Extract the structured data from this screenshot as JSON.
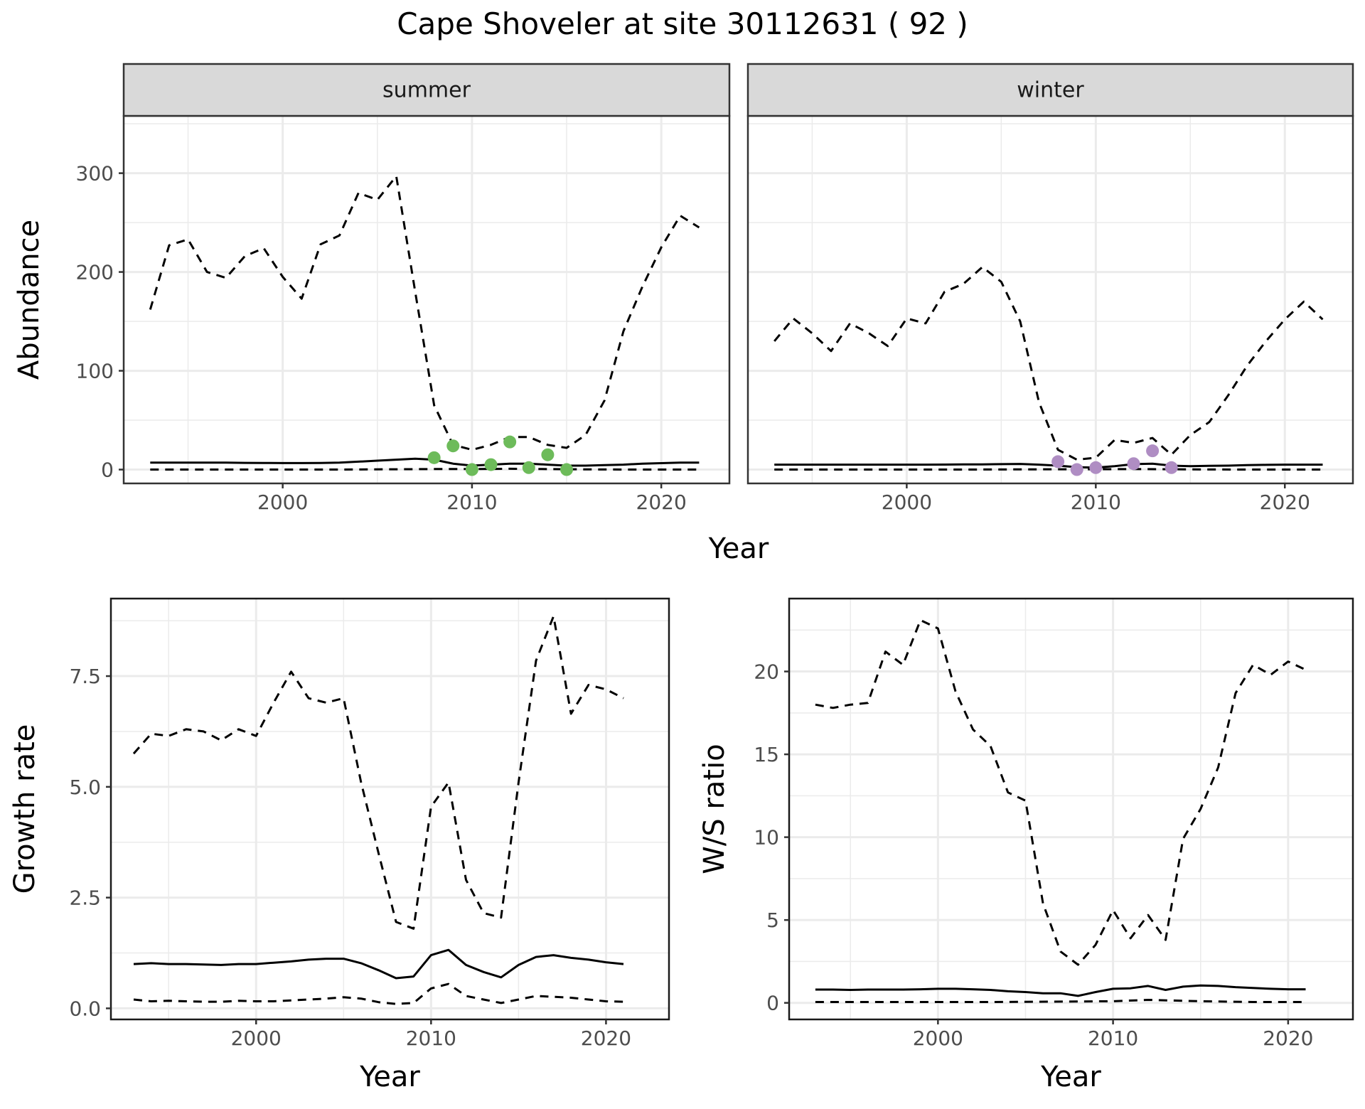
{
  "title": "Cape Shoveler at site 30112631 ( 92 )",
  "colors": {
    "summer_points": "#6dbb5a",
    "winter_points": "#af8dc3"
  },
  "chart_data": [
    {
      "type": "line",
      "facet": "summer",
      "xlabel": "Year",
      "ylabel": "Abundance",
      "xlim": [
        1991.6,
        2023.6
      ],
      "ylim": [
        -14,
        358
      ],
      "xticks": [
        2000,
        2010,
        2020
      ],
      "yticks": [
        0,
        100,
        200,
        300
      ],
      "grid": true,
      "series": [
        {
          "style": "dashed",
          "x": [
            1993,
            1994,
            1995,
            1996,
            1997,
            1998,
            1999,
            2000,
            2001,
            2002,
            2003,
            2004,
            2005,
            2006,
            2007,
            2008,
            2009,
            2010,
            2011,
            2012,
            2013,
            2014,
            2015,
            2016,
            2017,
            2018,
            2019,
            2020,
            2021,
            2022
          ],
          "y": [
            162,
            227,
            233,
            200,
            194,
            216,
            224,
            195,
            173,
            228,
            237,
            280,
            273,
            297,
            180,
            65,
            25,
            20,
            25,
            33,
            33,
            25,
            22,
            35,
            70,
            140,
            185,
            225,
            257,
            245
          ]
        },
        {
          "style": "solid",
          "x": [
            1993,
            1994,
            1995,
            1996,
            1997,
            1998,
            1999,
            2000,
            2001,
            2002,
            2003,
            2004,
            2005,
            2006,
            2007,
            2008,
            2009,
            2010,
            2011,
            2012,
            2013,
            2014,
            2015,
            2016,
            2017,
            2018,
            2019,
            2020,
            2021,
            2022
          ],
          "y": [
            7,
            7,
            7,
            7,
            7,
            6.8,
            6.7,
            6.6,
            6.6,
            6.7,
            7,
            8,
            9,
            10,
            11,
            10,
            6,
            4,
            5,
            6,
            6,
            5,
            4,
            4,
            4.5,
            5,
            6,
            6.5,
            7,
            7
          ]
        },
        {
          "style": "dashed",
          "x": [
            1993,
            1998,
            2003,
            2008,
            2010,
            2012,
            2015,
            2018,
            2022
          ],
          "y": [
            0,
            0,
            0,
            0.5,
            0.5,
            0.8,
            0.3,
            0,
            0
          ]
        }
      ],
      "points": {
        "x": [
          2008,
          2009,
          2010,
          2011,
          2012,
          2013,
          2014,
          2015
        ],
        "y": [
          12,
          24,
          0,
          5,
          28,
          2,
          15,
          0
        ]
      }
    },
    {
      "type": "line",
      "facet": "winter",
      "xlabel": "Year",
      "ylabel": "Abundance",
      "xlim": [
        1991.6,
        2023.6
      ],
      "ylim": [
        -14,
        358
      ],
      "xticks": [
        2000,
        2010,
        2020
      ],
      "yticks": [
        0,
        100,
        200,
        300
      ],
      "grid": true,
      "series": [
        {
          "style": "dashed",
          "x": [
            1993,
            1994,
            1995,
            1996,
            1997,
            1998,
            1999,
            2000,
            2001,
            2002,
            2003,
            2004,
            2005,
            2006,
            2007,
            2008,
            2009,
            2010,
            2011,
            2012,
            2013,
            2014,
            2015,
            2016,
            2017,
            2018,
            2019,
            2020,
            2021,
            2022
          ],
          "y": [
            130,
            153,
            138,
            120,
            148,
            138,
            125,
            153,
            148,
            180,
            188,
            205,
            190,
            150,
            68,
            20,
            10,
            12,
            30,
            27,
            32,
            15,
            35,
            48,
            75,
            105,
            130,
            152,
            170,
            152
          ]
        },
        {
          "style": "solid",
          "x": [
            1993,
            1994,
            1995,
            1996,
            1997,
            1998,
            1999,
            2000,
            2001,
            2002,
            2003,
            2004,
            2005,
            2006,
            2007,
            2008,
            2009,
            2010,
            2011,
            2012,
            2013,
            2014,
            2015,
            2016,
            2017,
            2018,
            2019,
            2020,
            2021,
            2022
          ],
          "y": [
            5,
            5,
            5,
            5,
            5,
            5,
            5,
            5,
            5,
            5.1,
            5.2,
            5.3,
            5.5,
            5.7,
            5,
            4,
            2.5,
            2,
            3.5,
            5.5,
            6,
            4,
            3.5,
            3.8,
            4,
            4.5,
            4.8,
            5,
            5,
            5
          ]
        },
        {
          "style": "dashed",
          "x": [
            1993,
            1998,
            2003,
            2008,
            2010,
            2012,
            2015,
            2018,
            2022
          ],
          "y": [
            0,
            0,
            0,
            0.3,
            0.3,
            0.5,
            0.2,
            0,
            0
          ]
        }
      ],
      "points": {
        "x": [
          2008,
          2009,
          2010,
          2012,
          2013,
          2014
        ],
        "y": [
          8,
          0,
          2,
          6,
          19,
          2
        ]
      }
    },
    {
      "type": "line",
      "xlabel": "Year",
      "ylabel": "Growth rate",
      "xlim": [
        1991.7,
        2023.6
      ],
      "ylim": [
        -0.25,
        9.25
      ],
      "xticks": [
        2000,
        2010,
        2020
      ],
      "yticks": [
        0.0,
        2.5,
        5.0,
        7.5
      ],
      "ytick_labels": [
        "0.0",
        "2.5",
        "5.0",
        "7.5"
      ],
      "grid": true,
      "series": [
        {
          "style": "dashed",
          "x": [
            1993,
            1994,
            1995,
            1996,
            1997,
            1998,
            1999,
            2000,
            2001,
            2002,
            2003,
            2004,
            2005,
            2006,
            2007,
            2008,
            2009,
            2010,
            2011,
            2012,
            2013,
            2014,
            2015,
            2016,
            2017,
            2018,
            2019,
            2020,
            2021
          ],
          "y": [
            5.75,
            6.2,
            6.15,
            6.3,
            6.25,
            6.05,
            6.3,
            6.15,
            6.9,
            7.6,
            7.0,
            6.9,
            7.0,
            5.1,
            3.5,
            1.95,
            1.8,
            4.55,
            5.1,
            2.9,
            2.15,
            2.05,
            5.1,
            7.85,
            8.85,
            6.65,
            7.3,
            7.2,
            7.0
          ]
        },
        {
          "style": "solid",
          "x": [
            1993,
            1994,
            1995,
            1996,
            1997,
            1998,
            1999,
            2000,
            2001,
            2002,
            2003,
            2004,
            2005,
            2006,
            2007,
            2008,
            2009,
            2010,
            2011,
            2012,
            2013,
            2014,
            2015,
            2016,
            2017,
            2018,
            2019,
            2020,
            2021
          ],
          "y": [
            1.0,
            1.02,
            1.0,
            1.0,
            0.99,
            0.98,
            1.0,
            1.0,
            1.03,
            1.06,
            1.1,
            1.12,
            1.12,
            1.02,
            0.86,
            0.68,
            0.72,
            1.2,
            1.32,
            0.98,
            0.82,
            0.7,
            0.98,
            1.16,
            1.2,
            1.14,
            1.1,
            1.04,
            1.0
          ]
        },
        {
          "style": "dashed",
          "x": [
            1993,
            1994,
            1995,
            1996,
            1997,
            1998,
            1999,
            2000,
            2001,
            2002,
            2003,
            2004,
            2005,
            2006,
            2007,
            2008,
            2009,
            2010,
            2011,
            2012,
            2013,
            2014,
            2015,
            2016,
            2017,
            2018,
            2019,
            2020,
            2021
          ],
          "y": [
            0.2,
            0.16,
            0.17,
            0.16,
            0.15,
            0.15,
            0.17,
            0.16,
            0.16,
            0.18,
            0.2,
            0.22,
            0.25,
            0.22,
            0.14,
            0.1,
            0.12,
            0.45,
            0.55,
            0.28,
            0.2,
            0.12,
            0.2,
            0.28,
            0.26,
            0.24,
            0.2,
            0.16,
            0.15
          ]
        }
      ]
    },
    {
      "type": "line",
      "xlabel": "Year",
      "ylabel": "W/S ratio",
      "xlim": [
        1991.5,
        2023.7
      ],
      "ylim": [
        -1.0,
        24.4
      ],
      "xticks": [
        2000,
        2010,
        2020
      ],
      "yticks": [
        0,
        5,
        10,
        15,
        20
      ],
      "grid": true,
      "series": [
        {
          "style": "dashed",
          "x": [
            1993,
            1994,
            1995,
            1996,
            1997,
            1998,
            1999,
            2000,
            2001,
            2002,
            2003,
            2004,
            2005,
            2006,
            2007,
            2008,
            2009,
            2010,
            2011,
            2012,
            2013,
            2014,
            2015,
            2016,
            2017,
            2018,
            2019,
            2020,
            2021
          ],
          "y": [
            18.0,
            17.8,
            18.0,
            18.1,
            21.2,
            20.4,
            23.1,
            22.6,
            18.8,
            16.5,
            15.5,
            12.7,
            12.2,
            6.0,
            3.1,
            2.3,
            3.5,
            5.6,
            3.9,
            5.3,
            3.8,
            9.9,
            11.7,
            14.2,
            18.7,
            20.4,
            19.8,
            20.6,
            20.1
          ]
        },
        {
          "style": "solid",
          "x": [
            1993,
            1994,
            1995,
            1996,
            1997,
            1998,
            1999,
            2000,
            2001,
            2002,
            2003,
            2004,
            2005,
            2006,
            2007,
            2008,
            2009,
            2010,
            2011,
            2012,
            2013,
            2014,
            2015,
            2016,
            2017,
            2018,
            2019,
            2020,
            2021
          ],
          "y": [
            0.8,
            0.8,
            0.78,
            0.8,
            0.8,
            0.8,
            0.82,
            0.85,
            0.85,
            0.82,
            0.78,
            0.7,
            0.65,
            0.58,
            0.58,
            0.42,
            0.65,
            0.85,
            0.88,
            1.02,
            0.78,
            0.98,
            1.05,
            1.02,
            0.95,
            0.9,
            0.85,
            0.82,
            0.82
          ]
        },
        {
          "style": "dashed",
          "x": [
            1993,
            1998,
            2003,
            2008,
            2010,
            2012,
            2015,
            2018,
            2021
          ],
          "y": [
            0.05,
            0.05,
            0.05,
            0.08,
            0.1,
            0.18,
            0.1,
            0.05,
            0.05
          ]
        }
      ]
    }
  ]
}
